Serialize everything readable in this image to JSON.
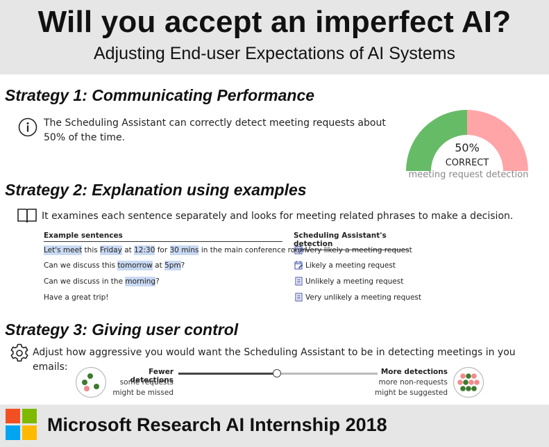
{
  "header": {
    "title": "Will you accept an imperfect AI?",
    "subtitle": "Adjusting End-user Expectations of AI Systems"
  },
  "strategy1": {
    "title": "Strategy 1: Communicating Performance",
    "text_line1": "The Scheduling Assistant can correctly detect meeting requests about",
    "text_line2": "50% of the time.",
    "gauge": {
      "value": 0.5,
      "percent_label": "50%",
      "correct_label": "CORRECT",
      "caption": "meeting request detection",
      "colors": {
        "correct": "#66bb66",
        "incorrect": "#ffa5a8"
      }
    }
  },
  "strategy2": {
    "title": "Strategy 2: Explanation using examples",
    "text": "It examines each sentence separately and looks for meeting related phrases to make a decision.",
    "col_sentences": "Example sentences",
    "col_detection": "Scheduling Assistant's detection",
    "sentences": [
      {
        "parts": [
          [
            "Let's meet",
            true
          ],
          [
            " this ",
            false
          ],
          [
            "Friday",
            true
          ],
          [
            " at ",
            false
          ],
          [
            "12:30",
            true
          ],
          [
            " for ",
            false
          ],
          [
            "30 mins",
            true
          ],
          [
            " in the main conference room",
            false
          ]
        ]
      },
      {
        "parts": [
          [
            "Can we discuss this ",
            false
          ],
          [
            "tomorrow",
            true
          ],
          [
            " at ",
            false
          ],
          [
            "5pm",
            true
          ],
          [
            "?",
            false
          ]
        ]
      },
      {
        "parts": [
          [
            "Can we discuss in the ",
            false
          ],
          [
            "morning",
            true
          ],
          [
            "?",
            false
          ]
        ]
      },
      {
        "parts": [
          [
            "Have a great trip!",
            false
          ]
        ]
      }
    ],
    "detections": [
      {
        "label": "Very likely a meeting request",
        "icon": "calendar-edit-icon"
      },
      {
        "label": "Likely a meeting request",
        "icon": "calendar-edit-icon"
      },
      {
        "label": "Unlikely a meeting request",
        "icon": "document-icon"
      },
      {
        "label": "Very unlikely a meeting request",
        "icon": "document-icon"
      }
    ],
    "highlight_color": "#c9d9f2"
  },
  "strategy3": {
    "title": "Strategy 3: Giving user control",
    "text": "Adjust how aggressive you would want the Scheduling Assistant to be in detecting meetings in you emails:",
    "fewer_label": "Fewer detections",
    "fewer_sub1": "some requests",
    "fewer_sub2": "might be missed",
    "more_label": "More detections",
    "more_sub1": "more non-requests",
    "more_sub2": "might be suggested",
    "slider_value": 0.5
  },
  "footer": {
    "text": "Microsoft Research AI Internship 2018",
    "logo_colors": [
      "#f25022",
      "#7fba00",
      "#00a4ef",
      "#ffb900"
    ]
  }
}
